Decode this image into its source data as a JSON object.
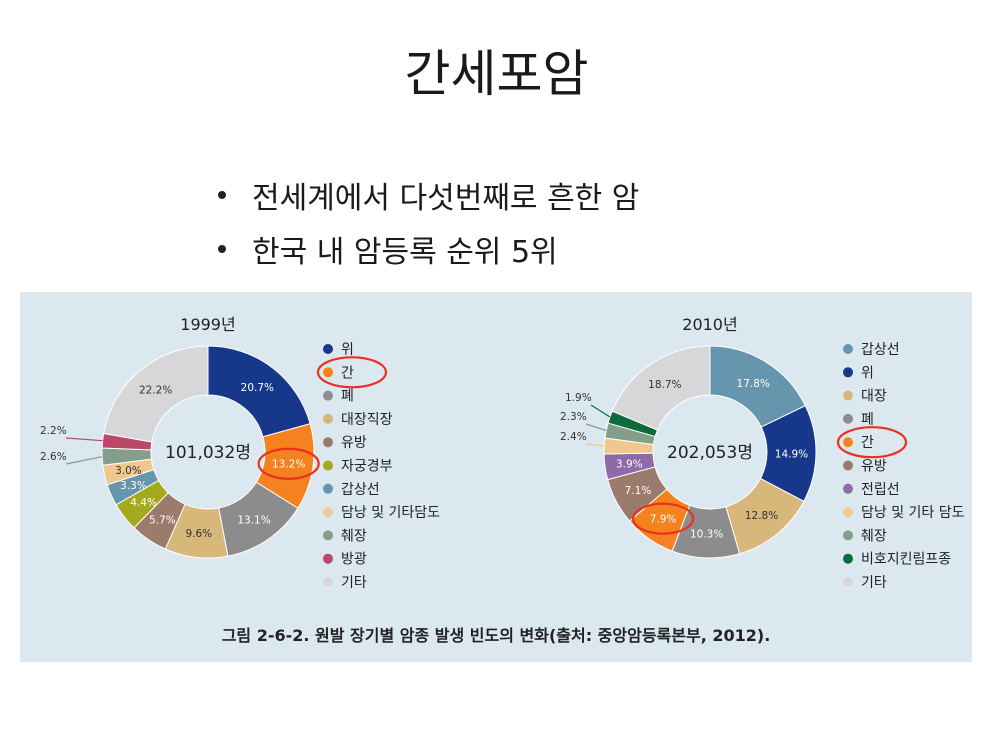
{
  "slide": {
    "title": "간세포암",
    "bullets": [
      "전세계에서 다섯번째로 흔한 암",
      "한국 내 암등록 순위 5위"
    ]
  },
  "figure": {
    "caption": "그림 2-6-2. 원발 장기별 암종 발생 빈도의 변화(출처: 중앙암등록본부, 2012)."
  },
  "chart_data": [
    {
      "type": "pie",
      "donut": true,
      "title": "1999년",
      "center_label": "101,032명",
      "categories": [
        "위",
        "간",
        "폐",
        "대장직장",
        "유방",
        "자궁경부",
        "갑상선",
        "담낭 및 기타담도",
        "췌장",
        "방광",
        "기타"
      ],
      "values": [
        20.7,
        13.2,
        13.1,
        9.6,
        5.7,
        4.4,
        3.3,
        3.0,
        2.6,
        2.2,
        22.2
      ],
      "value_labels": [
        "20.7%",
        "13.2%",
        "13.1%",
        "9.6%",
        "5.7%",
        "4.4%",
        "3.3%",
        "3.0%",
        "2.6%",
        "2.2%",
        "22.2%"
      ],
      "colors": [
        "#16378a",
        "#f5821f",
        "#8c8c8c",
        "#d8b77b",
        "#9a7b6c",
        "#a3aa1d",
        "#6596ad",
        "#f0c88f",
        "#839e8a",
        "#ba4868",
        "#d7d7d9"
      ],
      "highlighted": "간",
      "legend_position": "right"
    },
    {
      "type": "pie",
      "donut": true,
      "title": "2010년",
      "center_label": "202,053명",
      "categories": [
        "갑상선",
        "위",
        "대장",
        "폐",
        "간",
        "유방",
        "전립선",
        "담낭 및 기타 담도",
        "췌장",
        "비호지킨림프종",
        "기타"
      ],
      "values": [
        17.8,
        14.9,
        12.8,
        10.3,
        7.9,
        7.1,
        3.9,
        2.4,
        2.3,
        1.9,
        18.7
      ],
      "value_labels": [
        "17.8%",
        "14.9%",
        "12.8%",
        "10.3%",
        "7.9%",
        "7.1%",
        "3.9%",
        "2.4%",
        "2.3%",
        "1.9%",
        "18.7%"
      ],
      "colors": [
        "#6596ad",
        "#16378a",
        "#d8b77b",
        "#8c8c8c",
        "#f5821f",
        "#9a7b6c",
        "#8e6aa8",
        "#f0c88f",
        "#839e8a",
        "#0c6b3a",
        "#d7d7d9"
      ],
      "highlighted": "간",
      "legend_position": "right"
    }
  ]
}
